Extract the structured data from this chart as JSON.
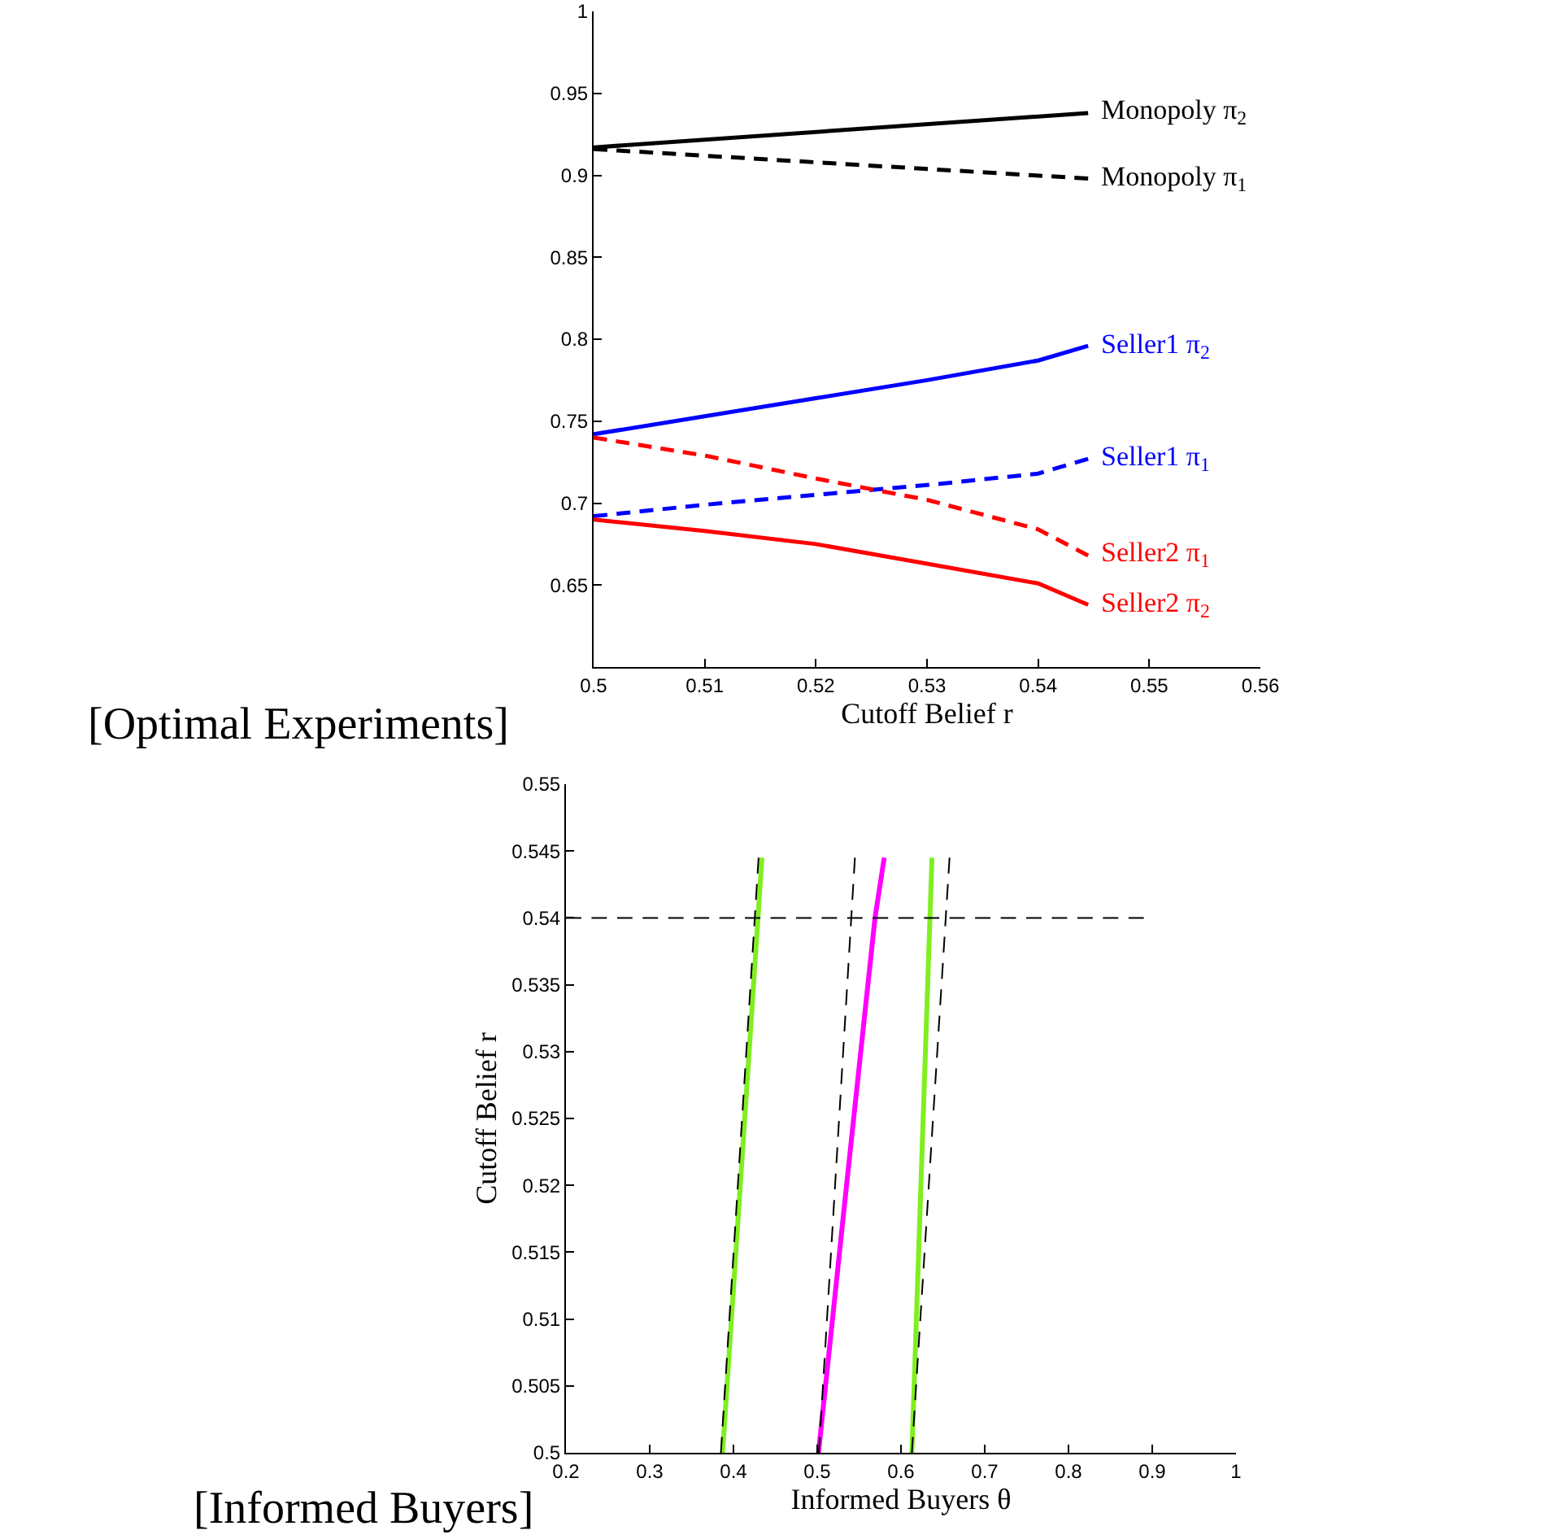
{
  "chart_data": [
    {
      "type": "line",
      "xlabel": "Cutoff Belief r",
      "xlim": [
        0.5,
        0.56
      ],
      "xticks": [
        0.5,
        0.51,
        0.52,
        0.53,
        0.54,
        0.55,
        0.56
      ],
      "ylim": [
        0.6,
        1
      ],
      "yticks": [
        0.65,
        0.7,
        0.75,
        0.8,
        0.85,
        0.9,
        0.95,
        1
      ],
      "grid": false,
      "legend": false,
      "annotations": [
        "[Optimal Experiments]"
      ],
      "series": [
        {
          "name": "Monopoly π$_{2}$",
          "color": "#000000",
          "line_style": "solid",
          "x": [
            0.5,
            0.5445
          ],
          "values": [
            0.917,
            0.938
          ]
        },
        {
          "name": "Monopoly π$_{1}$",
          "color": "#000000",
          "line_style": "dashed",
          "x": [
            0.5,
            0.5445
          ],
          "values": [
            0.916,
            0.898
          ]
        },
        {
          "name": "Seller1 π$_{2}$",
          "color": "#0000ff",
          "line_style": "solid",
          "x": [
            0.5,
            0.51,
            0.52,
            0.53,
            0.54,
            0.5445
          ],
          "values": [
            0.742,
            0.753,
            0.764,
            0.775,
            0.787,
            0.796
          ]
        },
        {
          "name": "Seller1 π$_{1}$",
          "color": "#0000ff",
          "line_style": "dashed",
          "x": [
            0.5,
            0.51,
            0.52,
            0.53,
            0.54,
            0.5445
          ],
          "values": [
            0.692,
            0.699,
            0.705,
            0.711,
            0.718,
            0.727
          ]
        },
        {
          "name": "Seller2 π$_{1}$",
          "color": "#ff0000",
          "line_style": "dashed",
          "x": [
            0.5,
            0.51,
            0.52,
            0.53,
            0.54,
            0.5445
          ],
          "values": [
            0.74,
            0.729,
            0.715,
            0.702,
            0.684,
            0.668
          ]
        },
        {
          "name": "Seller2 π$_{2}$",
          "color": "#ff0000",
          "line_style": "solid",
          "x": [
            0.5,
            0.51,
            0.52,
            0.53,
            0.54,
            0.5445
          ],
          "values": [
            0.69,
            0.683,
            0.675,
            0.663,
            0.651,
            0.638
          ]
        }
      ]
    },
    {
      "type": "line",
      "xlabel": "Informed Buyers θ",
      "ylabel": "Cutoff Belief r",
      "xlim": [
        0.2,
        1
      ],
      "xticks": [
        0.2,
        0.3,
        0.4,
        0.5,
        0.6,
        0.7,
        0.8,
        0.9,
        1
      ],
      "ylim": [
        0.5,
        0.55
      ],
      "yticks": [
        0.5,
        0.505,
        0.51,
        0.515,
        0.52,
        0.525,
        0.53,
        0.535,
        0.54,
        0.545,
        0.55
      ],
      "grid": false,
      "legend": false,
      "annotations": [
        "[Informed Buyers]"
      ],
      "series": [
        {
          "color": "#80ee20",
          "line_style": "solid",
          "x": [
            0.387,
            0.434
          ],
          "values": [
            0.5,
            0.5445
          ]
        },
        {
          "color": "#000000",
          "line_style": "dashed",
          "x": [
            0.385,
            0.43
          ],
          "values": [
            0.5,
            0.5445
          ]
        },
        {
          "color": "#ff00ff",
          "line_style": "solid",
          "x": [
            0.5015,
            0.535,
            0.569,
            0.58
          ],
          "values": [
            0.5,
            0.52,
            0.54,
            0.5445
          ]
        },
        {
          "color": "#000000",
          "line_style": "dashed",
          "x": [
            0.502,
            0.545
          ],
          "values": [
            0.5,
            0.5445
          ]
        },
        {
          "color": "#80ee20",
          "line_style": "solid",
          "x": [
            0.613,
            0.637
          ],
          "values": [
            0.5,
            0.5445
          ]
        },
        {
          "color": "#000000",
          "line_style": "dashed",
          "x": [
            0.613,
            0.658
          ],
          "values": [
            0.5,
            0.5445
          ]
        },
        {
          "color": "#000000",
          "line_style": "dashed",
          "x": [
            0.2,
            0.89
          ],
          "values": [
            0.54,
            0.54
          ]
        }
      ]
    }
  ]
}
